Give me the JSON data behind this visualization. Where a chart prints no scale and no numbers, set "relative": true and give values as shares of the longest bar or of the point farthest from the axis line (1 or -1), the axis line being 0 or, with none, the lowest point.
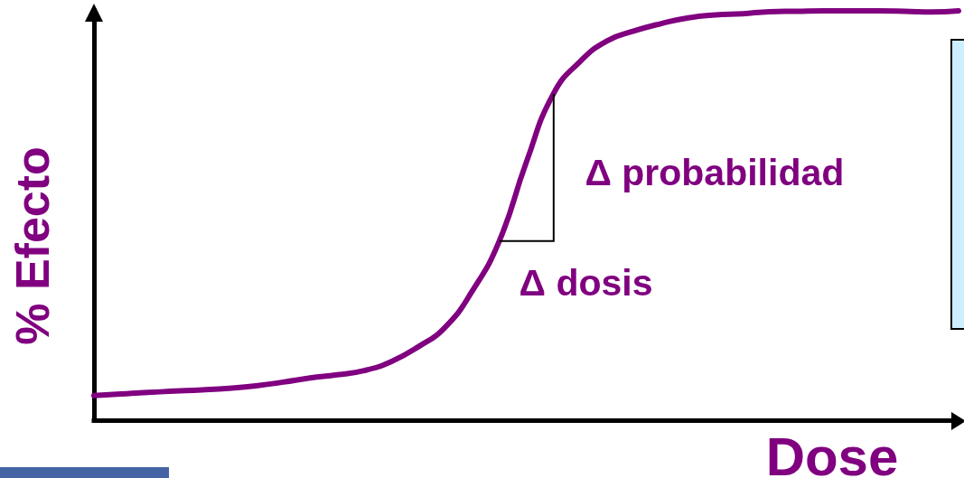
{
  "chart_data": {
    "type": "line",
    "relative": true,
    "xlabel": "Dose",
    "ylabel": "% Efecto",
    "categories": [
      null,
      null,
      null,
      null,
      null,
      null,
      null,
      null,
      null,
      null,
      null,
      null,
      null,
      null,
      null,
      null,
      null,
      null,
      null,
      null,
      null,
      null,
      null,
      null,
      null,
      null,
      null,
      null,
      null,
      null,
      null,
      null,
      null
    ],
    "values": [
      0.061,
      0.065,
      0.069,
      0.072,
      0.075,
      0.079,
      0.085,
      0.094,
      0.104,
      0.112,
      0.122,
      0.144,
      0.18,
      0.228,
      0.316,
      0.438,
      0.63,
      0.797,
      0.877,
      0.927,
      0.951,
      0.969,
      0.983,
      0.99,
      0.993,
      0.998,
      0.999,
      1,
      1,
      1,
      0.999,
      0.997,
      1
    ],
    "color": "#800080",
    "annotations": [
      "Δ probabilidad",
      "Δ dosis"
    ],
    "marker": "none",
    "line_style": "solid",
    "grid": false
  }
}
